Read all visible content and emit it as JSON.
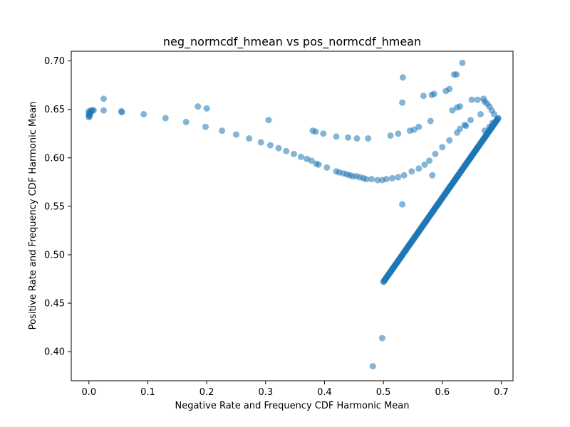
{
  "chart_data": {
    "type": "scatter",
    "title": "neg_normcdf_hmean vs pos_normcdf_hmean",
    "xlabel": "Negative Rate and Frequency CDF Harmonic Mean",
    "ylabel": "Positive Rate and Frequency CDF Harmonic Mean",
    "xlim": [
      -0.03,
      0.72
    ],
    "ylim": [
      0.37,
      0.71
    ],
    "xticks": [
      0.0,
      0.1,
      0.2,
      0.3,
      0.4,
      0.5,
      0.6,
      0.7
    ],
    "xtick_labels": [
      "0.0",
      "0.1",
      "0.2",
      "0.3",
      "0.4",
      "0.5",
      "0.6",
      "0.7"
    ],
    "yticks": [
      0.4,
      0.45,
      0.5,
      0.55,
      0.6,
      0.65,
      0.7
    ],
    "ytick_labels": [
      "0.40",
      "0.45",
      "0.50",
      "0.55",
      "0.60",
      "0.65",
      "0.70"
    ],
    "grid": false,
    "marker_color": "#1f77b4",
    "marker_alpha": 0.55,
    "series": [
      {
        "points": [
          [
            0.0,
            0.642
          ],
          [
            0.0,
            0.644
          ],
          [
            0.0,
            0.646
          ],
          [
            0.0,
            0.648
          ],
          [
            0.001,
            0.643
          ],
          [
            0.002,
            0.645
          ],
          [
            0.003,
            0.647
          ],
          [
            0.004,
            0.649
          ],
          [
            0.006,
            0.649
          ],
          [
            0.008,
            0.649
          ],
          [
            0.025,
            0.649
          ],
          [
            0.025,
            0.661
          ],
          [
            0.055,
            0.648
          ],
          [
            0.056,
            0.647
          ],
          [
            0.093,
            0.645
          ],
          [
            0.13,
            0.641
          ],
          [
            0.165,
            0.637
          ],
          [
            0.185,
            0.653
          ],
          [
            0.2,
            0.651
          ],
          [
            0.198,
            0.632
          ],
          [
            0.226,
            0.628
          ],
          [
            0.25,
            0.624
          ],
          [
            0.272,
            0.62
          ],
          [
            0.292,
            0.616
          ],
          [
            0.305,
            0.639
          ],
          [
            0.308,
            0.613
          ],
          [
            0.322,
            0.61
          ],
          [
            0.335,
            0.607
          ],
          [
            0.348,
            0.604
          ],
          [
            0.36,
            0.601
          ],
          [
            0.37,
            0.599
          ],
          [
            0.378,
            0.597
          ],
          [
            0.386,
            0.594
          ],
          [
            0.39,
            0.593
          ],
          [
            0.404,
            0.59
          ],
          [
            0.42,
            0.586
          ],
          [
            0.425,
            0.585
          ],
          [
            0.432,
            0.584
          ],
          [
            0.438,
            0.583
          ],
          [
            0.443,
            0.582
          ],
          [
            0.448,
            0.581
          ],
          [
            0.454,
            0.581
          ],
          [
            0.46,
            0.58
          ],
          [
            0.466,
            0.579
          ],
          [
            0.471,
            0.578
          ],
          [
            0.48,
            0.578
          ],
          [
            0.49,
            0.577
          ],
          [
            0.498,
            0.577
          ],
          [
            0.505,
            0.578
          ],
          [
            0.515,
            0.579
          ],
          [
            0.525,
            0.58
          ],
          [
            0.535,
            0.582
          ],
          [
            0.548,
            0.586
          ],
          [
            0.56,
            0.589
          ],
          [
            0.57,
            0.593
          ],
          [
            0.578,
            0.597
          ],
          [
            0.588,
            0.604
          ],
          [
            0.6,
            0.611
          ],
          [
            0.612,
            0.618
          ],
          [
            0.625,
            0.626
          ],
          [
            0.63,
            0.63
          ],
          [
            0.638,
            0.634
          ],
          [
            0.648,
            0.639
          ],
          [
            0.38,
            0.628
          ],
          [
            0.385,
            0.627
          ],
          [
            0.398,
            0.625
          ],
          [
            0.42,
            0.622
          ],
          [
            0.44,
            0.621
          ],
          [
            0.455,
            0.62
          ],
          [
            0.474,
            0.62
          ],
          [
            0.512,
            0.623
          ],
          [
            0.525,
            0.625
          ],
          [
            0.545,
            0.628
          ],
          [
            0.552,
            0.629
          ],
          [
            0.56,
            0.632
          ],
          [
            0.58,
            0.638
          ],
          [
            0.532,
            0.657
          ],
          [
            0.533,
            0.683
          ],
          [
            0.568,
            0.664
          ],
          [
            0.582,
            0.665
          ],
          [
            0.586,
            0.666
          ],
          [
            0.606,
            0.669
          ],
          [
            0.612,
            0.671
          ],
          [
            0.62,
            0.686
          ],
          [
            0.624,
            0.686
          ],
          [
            0.634,
            0.698
          ],
          [
            0.617,
            0.649
          ],
          [
            0.625,
            0.652
          ],
          [
            0.63,
            0.653
          ],
          [
            0.64,
            0.633
          ],
          [
            0.65,
            0.66
          ],
          [
            0.66,
            0.66
          ],
          [
            0.665,
            0.645
          ],
          [
            0.67,
            0.661
          ],
          [
            0.672,
            0.658
          ],
          [
            0.676,
            0.656
          ],
          [
            0.68,
            0.653
          ],
          [
            0.684,
            0.649
          ],
          [
            0.688,
            0.645
          ],
          [
            0.672,
            0.628
          ],
          [
            0.68,
            0.632
          ],
          [
            0.685,
            0.636
          ],
          [
            0.532,
            0.552
          ],
          [
            0.583,
            0.582
          ],
          [
            0.498,
            0.414
          ],
          [
            0.482,
            0.385
          ]
        ],
        "line_segment": {
          "x": [
            0.5,
            0.695
          ],
          "y": [
            0.472,
            0.641
          ],
          "count": 260
        }
      }
    ]
  }
}
